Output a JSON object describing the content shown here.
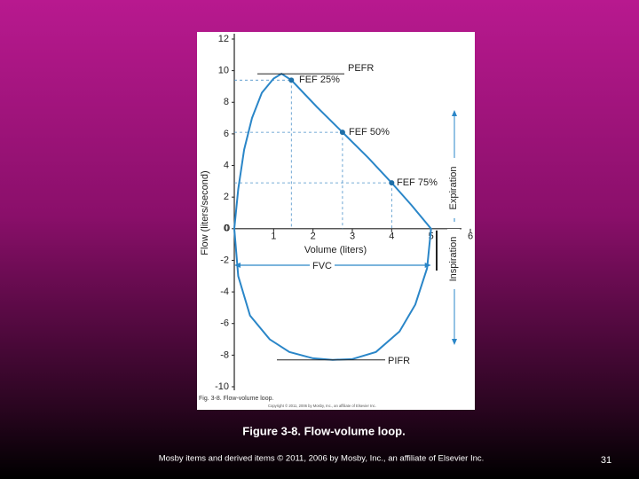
{
  "chart_data": {
    "type": "line",
    "x_label": "Volume (liters)",
    "y_label": "Flow (liters/second)",
    "figure_label": "Fig. 3-8. Flow-volume loop.",
    "image_credit": "Copyright © 2011, 2006 by Mosby, Inc., an affiliate of Elsevier Inc.",
    "x": [
      0,
      0.1,
      0.25,
      0.45,
      0.7,
      1.0,
      1.2,
      1.45,
      2.1,
      2.75,
      3.4,
      4.0,
      4.5,
      5.0,
      4.9,
      4.6,
      4.2,
      3.6,
      3.0,
      2.5,
      2.0,
      1.4,
      0.9,
      0.4,
      0.1,
      0
    ],
    "series": [
      {
        "color": "#2a86c8",
        "values": [
          0,
          2.5,
          5,
          7,
          8.6,
          9.5,
          9.8,
          9.4,
          7.7,
          6.1,
          4.5,
          2.9,
          1.5,
          0,
          -2.5,
          -4.8,
          -6.5,
          -7.8,
          -8.25,
          -8.3,
          -8.2,
          -7.8,
          -7,
          -5.5,
          -3,
          0
        ]
      }
    ],
    "xlim": [
      0,
      6
    ],
    "xticks": [
      0,
      1,
      2,
      3,
      4,
      5,
      6
    ],
    "ylim": [
      -10,
      12
    ],
    "yticks": [
      -10,
      -8,
      -6,
      -4,
      -2,
      0,
      2,
      4,
      6,
      8,
      10,
      12
    ],
    "annotations": [
      "PEFR",
      "FEF 25%",
      "FEF 50%",
      "FEF 75%",
      "FVC",
      "PIFR",
      "Expiration",
      "Inspiration"
    ]
  },
  "slide": {
    "caption": "Figure 3-8. Flow-volume loop.",
    "footer": "Mosby items and derived items © 2011, 2006 by Mosby, Inc., an affiliate of Elsevier Inc.",
    "page_number": "31"
  }
}
